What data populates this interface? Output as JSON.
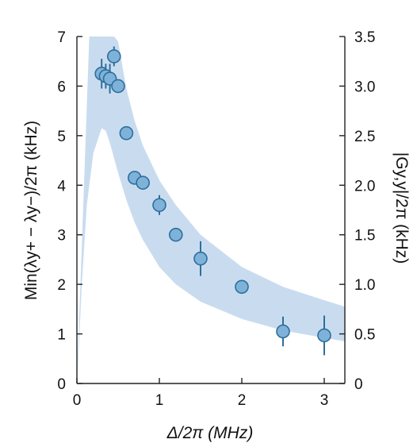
{
  "chart_data": {
    "type": "scatter",
    "title": "",
    "xlabel": "Δ/2π (MHz)",
    "ylabel_left": "Min(λy+ − λy−)/2π (kHz)",
    "ylabel_right": "|Gy,y|/2π (kHz)",
    "xlim": [
      0,
      3.25
    ],
    "ylim_left": [
      0,
      7
    ],
    "ylim_right": [
      0,
      3.5
    ],
    "x_ticks": [
      "0",
      "1",
      "2",
      "3"
    ],
    "y_left_ticks": [
      "0",
      "1",
      "2",
      "3",
      "4",
      "5",
      "6",
      "7"
    ],
    "y_right_ticks": [
      "0",
      "0.5",
      "1.0",
      "1.5",
      "2.0",
      "2.5",
      "3.0",
      "3.5"
    ],
    "grid": false,
    "colors": {
      "marker_fill": "#7fb2d9",
      "marker_edge": "#2d6e9c",
      "errorbar": "#2d6e9c",
      "band": "#c9dcef"
    },
    "points": [
      {
        "x": 0.3,
        "y": 6.25,
        "err": 0.3
      },
      {
        "x": 0.35,
        "y": 6.2,
        "err": 0.25
      },
      {
        "x": 0.4,
        "y": 6.15,
        "err": 0.3
      },
      {
        "x": 0.45,
        "y": 6.6,
        "err": 0.2
      },
      {
        "x": 0.5,
        "y": 6.0,
        "err": 0.1
      },
      {
        "x": 0.6,
        "y": 5.05,
        "err": 0.1
      },
      {
        "x": 0.7,
        "y": 4.15,
        "err": 0.1
      },
      {
        "x": 0.8,
        "y": 4.05,
        "err": 0.1
      },
      {
        "x": 1.0,
        "y": 3.6,
        "err": 0.2
      },
      {
        "x": 1.2,
        "y": 3.0,
        "err": 0.1
      },
      {
        "x": 1.5,
        "y": 2.52,
        "err": 0.35
      },
      {
        "x": 2.0,
        "y": 1.95,
        "err": 0.1
      },
      {
        "x": 2.5,
        "y": 1.05,
        "err": 0.3
      },
      {
        "x": 3.0,
        "y": 0.97,
        "err": 0.4
      }
    ],
    "band": {
      "upper": [
        [
          0.15,
          7.0
        ],
        [
          0.45,
          7.0
        ],
        [
          0.5,
          6.9
        ],
        [
          0.6,
          5.95
        ],
        [
          0.7,
          5.3
        ],
        [
          0.8,
          4.8
        ],
        [
          1.0,
          4.1
        ],
        [
          1.2,
          3.6
        ],
        [
          1.5,
          3.0
        ],
        [
          2.0,
          2.35
        ],
        [
          2.5,
          1.95
        ],
        [
          3.0,
          1.68
        ],
        [
          3.25,
          1.55
        ]
      ],
      "lower": [
        [
          0.0,
          0.0
        ],
        [
          0.02,
          0.6
        ],
        [
          0.06,
          2.0
        ],
        [
          0.12,
          3.6
        ],
        [
          0.2,
          4.65
        ],
        [
          0.3,
          5.15
        ],
        [
          0.35,
          5.1
        ],
        [
          0.4,
          4.85
        ],
        [
          0.5,
          4.25
        ],
        [
          0.6,
          3.7
        ],
        [
          0.7,
          3.25
        ],
        [
          0.8,
          2.9
        ],
        [
          1.0,
          2.35
        ],
        [
          1.2,
          2.0
        ],
        [
          1.5,
          1.65
        ],
        [
          2.0,
          1.3
        ],
        [
          2.5,
          1.07
        ],
        [
          3.0,
          0.92
        ],
        [
          3.25,
          0.85
        ]
      ]
    }
  }
}
